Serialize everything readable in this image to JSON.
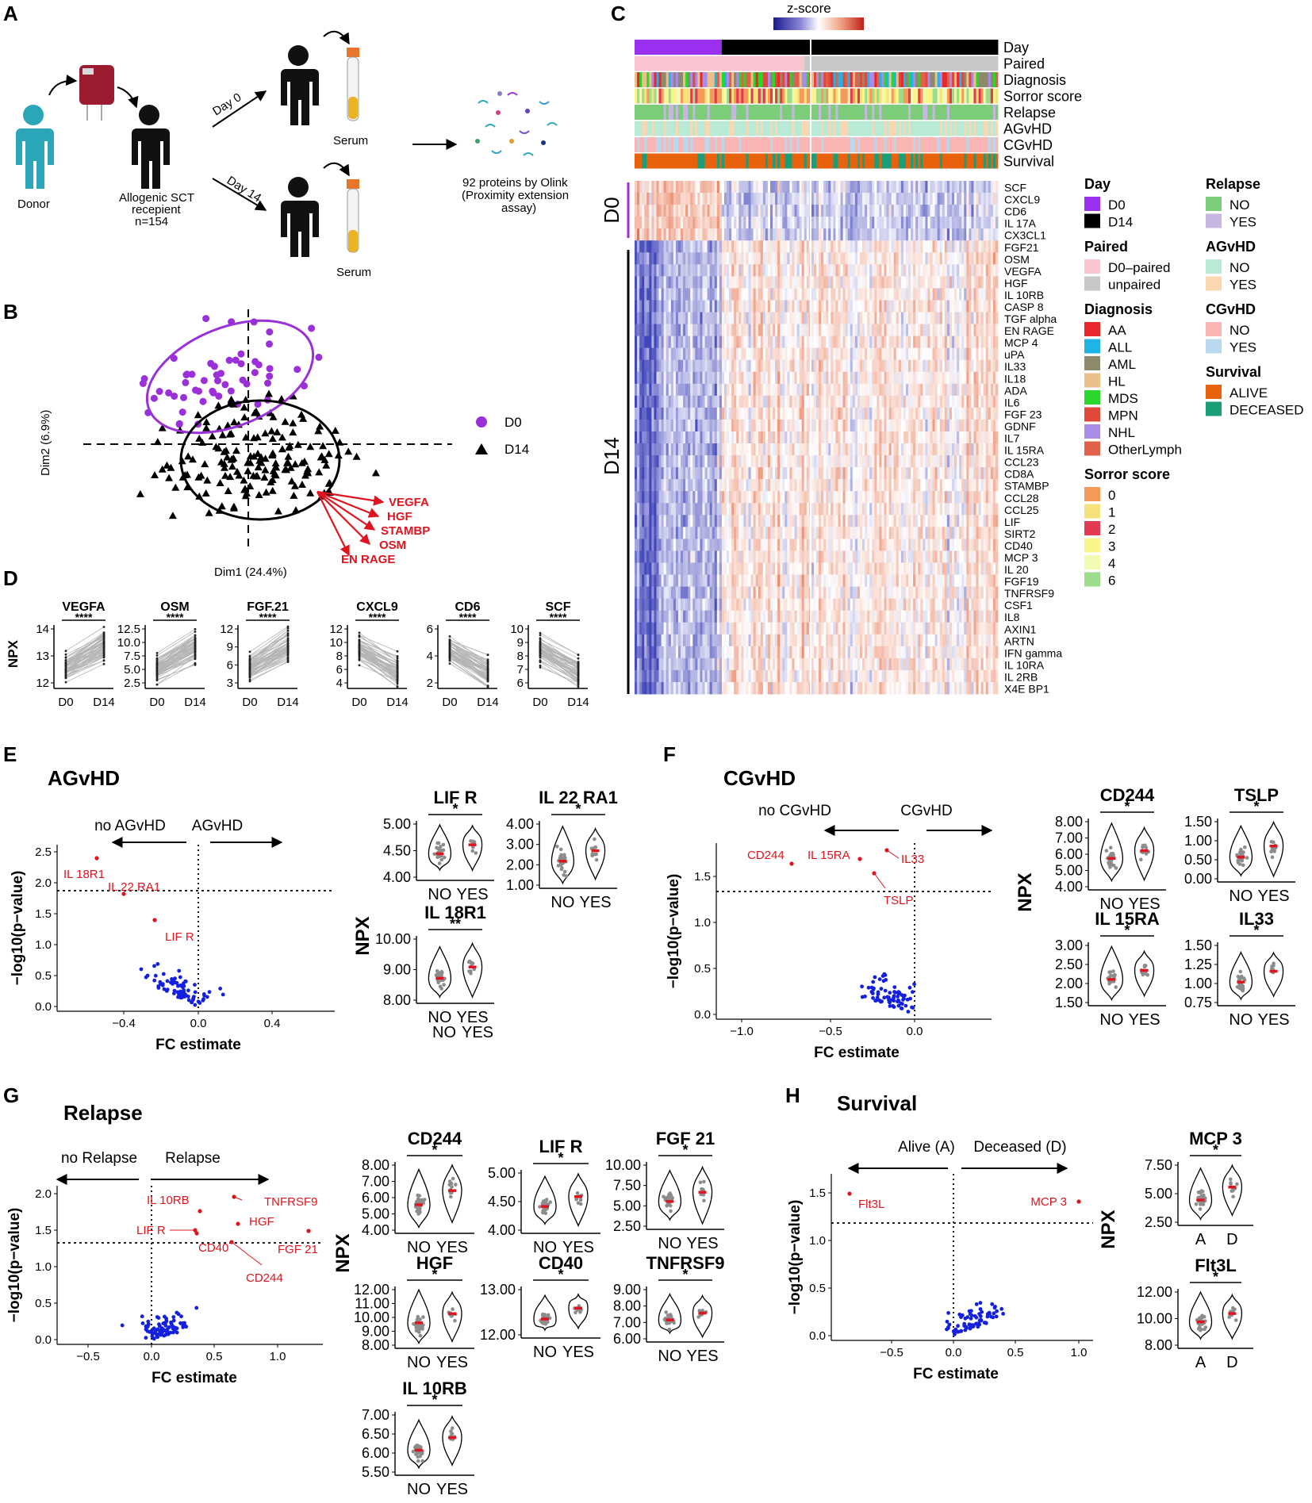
{
  "panels": {
    "A": "A",
    "B": "B",
    "C": "C",
    "D": "D",
    "E": "E",
    "F": "F",
    "G": "G",
    "H": "H"
  },
  "panel_a": {
    "donor": "Donor",
    "recipient_line1": "Allogenic SCT",
    "recipient_line2": "recepient",
    "recipient_line3": "n=154",
    "day0": "Day 0",
    "day14": "Day 14",
    "serum_top": "Serum",
    "serum_bottom": "Serum",
    "olink_line1": "92 proteins by Olink",
    "olink_line2": "(Proximity extension",
    "olink_line3": "assay)",
    "colors": {
      "donor": "#2aa6b8",
      "recipient": "#111111",
      "tube_cap": "#e8762a",
      "tube_fluid": "#e8b423"
    }
  },
  "panel_b": {
    "xlabel": "Dim1 (24.4%)",
    "ylabel": "Dim2 (6.9%)",
    "legend": [
      {
        "label": "D0",
        "color": "#9b30d9",
        "shape": "circle"
      },
      {
        "label": "D14",
        "color": "#000000",
        "shape": "triangle"
      }
    ],
    "arrows": [
      "VEGFA",
      "HGF",
      "STAMBP",
      "OSM",
      "EN RAGE"
    ]
  },
  "panel_c": {
    "scale_label": "z-score",
    "annotation_rows": [
      "Day",
      "Paired",
      "Diagnosis",
      "Sorror  score",
      "Relapse",
      "AGvHD",
      "CGvHD",
      "Survival"
    ],
    "group_d0": "D0",
    "group_d14": "D14",
    "genes": [
      "SCF",
      "CXCL9",
      "CD6",
      "IL 17A",
      "CX3CL1",
      "FGF21",
      "OSM",
      "VEGFA",
      "HGF",
      "IL 10RB",
      "CASP 8",
      "TGF alpha",
      "EN RAGE",
      "MCP 4",
      "uPA",
      "IL33",
      "IL18",
      "ADA",
      "IL6",
      "FGF 23",
      "GDNF",
      "IL7",
      "IL 15RA",
      "CCL23",
      "CD8A",
      "STAMBP",
      "CCL28",
      "CCL25",
      "LIF",
      "SIRT2",
      "CD40",
      "MCP 3",
      "IL 20",
      "FGF19",
      "TNFRSF9",
      "CSF1",
      "IL8",
      "AXIN1",
      "ARTN",
      "IFN gamma",
      "IL 10RA",
      "IL 2RB",
      "X4E BP1"
    ],
    "legends": [
      {
        "title": "Day",
        "items": [
          {
            "label": "D0",
            "color": "#9b30f0"
          },
          {
            "label": "D14",
            "color": "#000000"
          }
        ]
      },
      {
        "title": "Paired",
        "items": [
          {
            "label": "D0–paired",
            "color": "#f9c5d0"
          },
          {
            "label": "unpaired",
            "color": "#c8c8c8"
          }
        ]
      },
      {
        "title": "Diagnosis",
        "items": [
          {
            "label": "AA",
            "color": "#e8282b"
          },
          {
            "label": "ALL",
            "color": "#1fb3e8"
          },
          {
            "label": "AML",
            "color": "#8c8a6a"
          },
          {
            "label": "HL",
            "color": "#eabf8a"
          },
          {
            "label": "MDS",
            "color": "#2ad62a"
          },
          {
            "label": "MPN",
            "color": "#e0483a"
          },
          {
            "label": "NHL",
            "color": "#a98be8"
          },
          {
            "label": "OtherLymph",
            "color": "#e0604a"
          }
        ]
      },
      {
        "title": "Sorror  score",
        "items": [
          {
            "label": "0",
            "color": "#f59a5a"
          },
          {
            "label": "1",
            "color": "#f6e27a"
          },
          {
            "label": "2",
            "color": "#e23a52"
          },
          {
            "label": "3",
            "color": "#f8f68a"
          },
          {
            "label": "4",
            "color": "#f2f9b0"
          },
          {
            "label": "6",
            "color": "#9cdc8c"
          }
        ]
      },
      {
        "title": "Relapse",
        "items": [
          {
            "label": "NO",
            "color": "#7ccc7a"
          },
          {
            "label": "YES",
            "color": "#c8b6e2"
          }
        ]
      },
      {
        "title": "AGvHD",
        "items": [
          {
            "label": "NO",
            "color": "#b8ead6"
          },
          {
            "label": "YES",
            "color": "#fbd6b0"
          }
        ]
      },
      {
        "title": "CGvHD",
        "items": [
          {
            "label": "NO",
            "color": "#f9b6b4"
          },
          {
            "label": "YES",
            "color": "#b8d8ee"
          }
        ]
      },
      {
        "title": "Survival",
        "items": [
          {
            "label": "ALIVE",
            "color": "#e8620e"
          },
          {
            "label": "DECEASED",
            "color": "#1a9e78"
          }
        ]
      }
    ]
  },
  "panel_d": {
    "ylabel": "NPX",
    "plots": [
      {
        "title": "VEGFA",
        "sig": "****",
        "ticks": [
          "14",
          "13",
          "12"
        ],
        "x": [
          "D0",
          "D14"
        ]
      },
      {
        "title": "OSM",
        "sig": "****",
        "ticks": [
          "12.5",
          "10.0",
          "7.5",
          "5.0",
          "2.5"
        ],
        "x": [
          "D0",
          "D14"
        ]
      },
      {
        "title": "FGF.21",
        "sig": "****",
        "ticks": [
          "12",
          "9",
          "6",
          "3"
        ],
        "x": [
          "D0",
          "D14"
        ]
      },
      {
        "title": "CXCL9",
        "sig": "****",
        "ticks": [
          "12",
          "10",
          "8",
          "6",
          "4"
        ],
        "x": [
          "D0",
          "D14"
        ]
      },
      {
        "title": "CD6",
        "sig": "****",
        "ticks": [
          "6",
          "4",
          "2"
        ],
        "x": [
          "D0",
          "D14"
        ]
      },
      {
        "title": "SCF",
        "sig": "****",
        "ticks": [
          "10",
          "9",
          "8",
          "7",
          "6"
        ],
        "x": [
          "D0",
          "D14"
        ]
      }
    ]
  },
  "panel_e": {
    "title": "AGvHD",
    "left_dir": "no AGvHD",
    "right_dir": "AGvHD",
    "ylabel": "−log10(p−value)",
    "xlabel": "FC estimate",
    "yticks": [
      "2.5",
      "2.0",
      "1.5",
      "1.0",
      "0.5",
      "0.0"
    ],
    "xticks": [
      "−0.4",
      "0.0",
      "0.4"
    ],
    "labels": [
      "IL 18R1",
      "IL 22 RA1",
      "LIF R"
    ],
    "npx": "NPX",
    "violins": [
      {
        "title": "LIF R",
        "sig": "*",
        "ticks": [
          "5.00",
          "4.50",
          "4.00"
        ]
      },
      {
        "title": "IL 22 RA1",
        "sig": "*",
        "ticks": [
          "4.00",
          "3.00",
          "2.00",
          "1.00"
        ]
      },
      {
        "title": "IL 18R1",
        "sig": "**",
        "ticks": [
          "10.00",
          "9.00",
          "8.00"
        ]
      }
    ],
    "x": [
      "NO",
      "YES"
    ]
  },
  "panel_f": {
    "title": "CGvHD",
    "left_dir": "no CGvHD",
    "right_dir": "CGvHD",
    "ylabel": "−log10(p−value)",
    "xlabel": "FC estimate",
    "yticks": [
      "1.5",
      "1.0",
      "0.5",
      "0.0"
    ],
    "xticks": [
      "−1.0",
      "−0.5",
      "0.0"
    ],
    "labels": [
      "CD244",
      "IL 15RA",
      "IL33",
      "TSLP"
    ],
    "npx": "NPX",
    "violins": [
      {
        "title": "CD244",
        "sig": "*",
        "ticks": [
          "8.00",
          "7.00",
          "6.00",
          "5.00",
          "4.00"
        ]
      },
      {
        "title": "TSLP",
        "sig": "*",
        "ticks": [
          "1.50",
          "1.00",
          "0.50",
          "0.00"
        ]
      },
      {
        "title": "IL 15RA",
        "sig": "*",
        "ticks": [
          "3.00",
          "2.50",
          "2.00",
          "1.50"
        ]
      },
      {
        "title": "IL33",
        "sig": "*",
        "ticks": [
          "1.50",
          "1.25",
          "1.00",
          "0.75"
        ]
      }
    ],
    "x": [
      "NO",
      "YES"
    ]
  },
  "panel_g": {
    "title": "Relapse",
    "left_dir": "no Relapse",
    "right_dir": "Relapse",
    "ylabel": "−log10(p−value)",
    "xlabel": "FC estimate",
    "yticks": [
      "2.0",
      "1.5",
      "1.0",
      "0.5",
      "0.0"
    ],
    "xticks": [
      "−0.5",
      "0.0",
      "0.5",
      "1.0"
    ],
    "labels": [
      "IL 10RB",
      "TNFRSF9",
      "HGF",
      "LIF R",
      "CD40",
      "FGF 21",
      "CD244"
    ],
    "npx": "NPX",
    "violins": [
      {
        "title": "CD244",
        "sig": "*",
        "ticks": [
          "8.00",
          "7.00",
          "6.00",
          "5.00",
          "4.00"
        ]
      },
      {
        "title": "LIF R",
        "sig": "*",
        "ticks": [
          "5.00",
          "4.50",
          "4.00"
        ]
      },
      {
        "title": "FGF 21",
        "sig": "*",
        "ticks": [
          "10.00",
          "7.50",
          "5.00",
          "2.50"
        ]
      },
      {
        "title": "HGF",
        "sig": "*",
        "ticks": [
          "12.00",
          "11.00",
          "10.00",
          "9.00",
          "8.00"
        ]
      },
      {
        "title": "CD40",
        "sig": "*",
        "ticks": [
          "13.00",
          "12.00"
        ]
      },
      {
        "title": "TNFRSF9",
        "sig": "*",
        "ticks": [
          "9.00",
          "8.00",
          "7.00",
          "6.00"
        ]
      },
      {
        "title": "IL 10RB",
        "sig": "*",
        "ticks": [
          "7.00",
          "6.50",
          "6.00",
          "5.50"
        ]
      }
    ],
    "x": [
      "NO",
      "YES"
    ]
  },
  "panel_h": {
    "title": "Survival",
    "left_dir": "Alive (A)",
    "right_dir": "Deceased (D)",
    "ylabel": "−log10(p−value)",
    "xlabel": "FC estimate",
    "yticks": [
      "1.5",
      "1.0",
      "0.5",
      "0.0"
    ],
    "xticks": [
      "−0.5",
      "0.0",
      "0.5",
      "1.0"
    ],
    "labels": [
      "Flt3L",
      "MCP 3"
    ],
    "npx": "NPX",
    "violins": [
      {
        "title": "MCP 3",
        "sig": "*",
        "ticks": [
          "7.50",
          "5.00",
          "2.50"
        ]
      },
      {
        "title": "Flt3L",
        "sig": "*",
        "ticks": [
          "12.00",
          "10.00",
          "8.00"
        ]
      }
    ],
    "x": [
      "A",
      "D"
    ]
  }
}
